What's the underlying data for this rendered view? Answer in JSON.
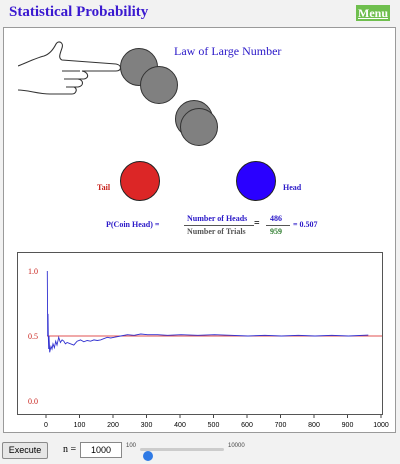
{
  "header": {
    "title": "Statistical Probability",
    "menu_label": "Menu"
  },
  "panel": {
    "heading": "Law of Large Number",
    "tail_label": "Tail",
    "head_label": "Head",
    "formula": {
      "lhs": "P(Coin Head) =",
      "numerator_label": "Number of Heads",
      "denominator_label": "Number of Trials",
      "equals": "=",
      "heads": "486",
      "trials": "959",
      "result": "= 0.507"
    },
    "colors": {
      "tail": "#dc2626",
      "head": "#2a00ff",
      "coin": "#808080"
    }
  },
  "chart_data": {
    "type": "line",
    "x_ticks": [
      "0",
      "100",
      "200",
      "300",
      "400",
      "500",
      "600",
      "700",
      "800",
      "900",
      "1000"
    ],
    "y_ticks": [
      "1.0",
      "0.5",
      "0.0"
    ],
    "xlim": [
      0,
      1000
    ],
    "ylim": [
      0,
      1
    ],
    "reference_line": {
      "y": 0.5,
      "color": "#e05050"
    },
    "series": [
      {
        "color": "#3030d0",
        "x": [
          1,
          2,
          3,
          4,
          5,
          6,
          8,
          10,
          12,
          15,
          18,
          22,
          26,
          30,
          35,
          40,
          45,
          50,
          55,
          60,
          70,
          80,
          90,
          100,
          110,
          120,
          130,
          140,
          150,
          160,
          170,
          180,
          190,
          200,
          220,
          240,
          260,
          280,
          300,
          330,
          360,
          400,
          450,
          500,
          550,
          600,
          650,
          700,
          750,
          800,
          850,
          900,
          959
        ],
        "y": [
          1.0,
          0.5,
          0.67,
          0.5,
          0.4,
          0.5,
          0.375,
          0.4,
          0.42,
          0.4,
          0.44,
          0.41,
          0.46,
          0.43,
          0.49,
          0.45,
          0.47,
          0.46,
          0.44,
          0.45,
          0.44,
          0.43,
          0.46,
          0.47,
          0.455,
          0.465,
          0.46,
          0.47,
          0.465,
          0.47,
          0.48,
          0.49,
          0.485,
          0.49,
          0.5,
          0.51,
          0.505,
          0.515,
          0.51,
          0.51,
          0.505,
          0.51,
          0.505,
          0.51,
          0.505,
          0.5,
          0.505,
          0.5,
          0.505,
          0.5,
          0.505,
          0.5,
          0.507
        ]
      }
    ]
  },
  "controls": {
    "execute_label": "Execute",
    "n_label": "n =",
    "n_value": "1000",
    "slider_min": "100",
    "slider_max": "10000",
    "slider_value": 1000
  }
}
